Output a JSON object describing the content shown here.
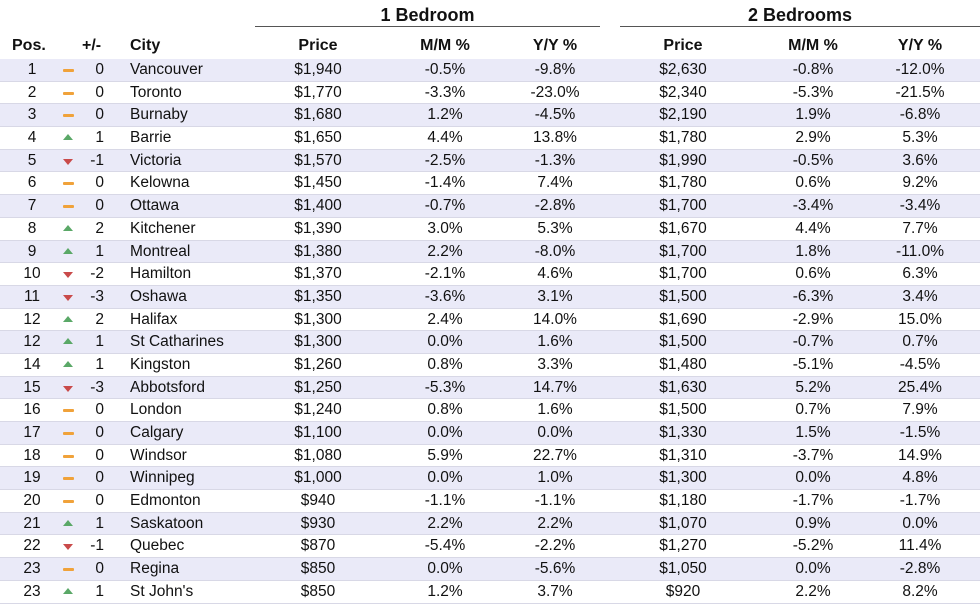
{
  "groups": {
    "one_bed": "1 Bedroom",
    "two_bed": "2 Bedrooms"
  },
  "headers": {
    "pos": "Pos.",
    "change": "+/-",
    "city": "City",
    "price1": "Price",
    "mm1": "M/M %",
    "yy1": "Y/Y %",
    "price2": "Price",
    "mm2": "M/M %",
    "yy2": "Y/Y %"
  },
  "colors": {
    "up": "#5aa867",
    "down": "#c94a4a",
    "same": "#f0a23a",
    "stripe": "#eaeaf8"
  },
  "rows": [
    {
      "pos": "1",
      "trend": "same",
      "change": "0",
      "city": "Vancouver",
      "price1": "$1,940",
      "mm1": "-0.5%",
      "yy1": "-9.8%",
      "price2": "$2,630",
      "mm2": "-0.8%",
      "yy2": "-12.0%"
    },
    {
      "pos": "2",
      "trend": "same",
      "change": "0",
      "city": "Toronto",
      "price1": "$1,770",
      "mm1": "-3.3%",
      "yy1": "-23.0%",
      "price2": "$2,340",
      "mm2": "-5.3%",
      "yy2": "-21.5%"
    },
    {
      "pos": "3",
      "trend": "same",
      "change": "0",
      "city": "Burnaby",
      "price1": "$1,680",
      "mm1": "1.2%",
      "yy1": "-4.5%",
      "price2": "$2,190",
      "mm2": "1.9%",
      "yy2": "-6.8%"
    },
    {
      "pos": "4",
      "trend": "up",
      "change": "1",
      "city": "Barrie",
      "price1": "$1,650",
      "mm1": "4.4%",
      "yy1": "13.8%",
      "price2": "$1,780",
      "mm2": "2.9%",
      "yy2": "5.3%"
    },
    {
      "pos": "5",
      "trend": "down",
      "change": "-1",
      "city": "Victoria",
      "price1": "$1,570",
      "mm1": "-2.5%",
      "yy1": "-1.3%",
      "price2": "$1,990",
      "mm2": "-0.5%",
      "yy2": "3.6%"
    },
    {
      "pos": "6",
      "trend": "same",
      "change": "0",
      "city": "Kelowna",
      "price1": "$1,450",
      "mm1": "-1.4%",
      "yy1": "7.4%",
      "price2": "$1,780",
      "mm2": "0.6%",
      "yy2": "9.2%"
    },
    {
      "pos": "7",
      "trend": "same",
      "change": "0",
      "city": "Ottawa",
      "price1": "$1,400",
      "mm1": "-0.7%",
      "yy1": "-2.8%",
      "price2": "$1,700",
      "mm2": "-3.4%",
      "yy2": "-3.4%"
    },
    {
      "pos": "8",
      "trend": "up",
      "change": "2",
      "city": "Kitchener",
      "price1": "$1,390",
      "mm1": "3.0%",
      "yy1": "5.3%",
      "price2": "$1,670",
      "mm2": "4.4%",
      "yy2": "7.7%"
    },
    {
      "pos": "9",
      "trend": "up",
      "change": "1",
      "city": "Montreal",
      "price1": "$1,380",
      "mm1": "2.2%",
      "yy1": "-8.0%",
      "price2": "$1,700",
      "mm2": "1.8%",
      "yy2": "-11.0%"
    },
    {
      "pos": "10",
      "trend": "down",
      "change": "-2",
      "city": "Hamilton",
      "price1": "$1,370",
      "mm1": "-2.1%",
      "yy1": "4.6%",
      "price2": "$1,700",
      "mm2": "0.6%",
      "yy2": "6.3%"
    },
    {
      "pos": "11",
      "trend": "down",
      "change": "-3",
      "city": "Oshawa",
      "price1": "$1,350",
      "mm1": "-3.6%",
      "yy1": "3.1%",
      "price2": "$1,500",
      "mm2": "-6.3%",
      "yy2": "3.4%"
    },
    {
      "pos": "12",
      "trend": "up",
      "change": "2",
      "city": "Halifax",
      "price1": "$1,300",
      "mm1": "2.4%",
      "yy1": "14.0%",
      "price2": "$1,690",
      "mm2": "-2.9%",
      "yy2": "15.0%"
    },
    {
      "pos": "12",
      "trend": "up",
      "change": "1",
      "city": "St Catharines",
      "price1": "$1,300",
      "mm1": "0.0%",
      "yy1": "1.6%",
      "price2": "$1,500",
      "mm2": "-0.7%",
      "yy2": "0.7%"
    },
    {
      "pos": "14",
      "trend": "up",
      "change": "1",
      "city": "Kingston",
      "price1": "$1,260",
      "mm1": "0.8%",
      "yy1": "3.3%",
      "price2": "$1,480",
      "mm2": "-5.1%",
      "yy2": "-4.5%"
    },
    {
      "pos": "15",
      "trend": "down",
      "change": "-3",
      "city": "Abbotsford",
      "price1": "$1,250",
      "mm1": "-5.3%",
      "yy1": "14.7%",
      "price2": "$1,630",
      "mm2": "5.2%",
      "yy2": "25.4%"
    },
    {
      "pos": "16",
      "trend": "same",
      "change": "0",
      "city": "London",
      "price1": "$1,240",
      "mm1": "0.8%",
      "yy1": "1.6%",
      "price2": "$1,500",
      "mm2": "0.7%",
      "yy2": "7.9%"
    },
    {
      "pos": "17",
      "trend": "same",
      "change": "0",
      "city": "Calgary",
      "price1": "$1,100",
      "mm1": "0.0%",
      "yy1": "0.0%",
      "price2": "$1,330",
      "mm2": "1.5%",
      "yy2": "-1.5%"
    },
    {
      "pos": "18",
      "trend": "same",
      "change": "0",
      "city": "Windsor",
      "price1": "$1,080",
      "mm1": "5.9%",
      "yy1": "22.7%",
      "price2": "$1,310",
      "mm2": "-3.7%",
      "yy2": "14.9%"
    },
    {
      "pos": "19",
      "trend": "same",
      "change": "0",
      "city": "Winnipeg",
      "price1": "$1,000",
      "mm1": "0.0%",
      "yy1": "1.0%",
      "price2": "$1,300",
      "mm2": "0.0%",
      "yy2": "4.8%"
    },
    {
      "pos": "20",
      "trend": "same",
      "change": "0",
      "city": "Edmonton",
      "price1": "$940",
      "mm1": "-1.1%",
      "yy1": "-1.1%",
      "price2": "$1,180",
      "mm2": "-1.7%",
      "yy2": "-1.7%"
    },
    {
      "pos": "21",
      "trend": "up",
      "change": "1",
      "city": "Saskatoon",
      "price1": "$930",
      "mm1": "2.2%",
      "yy1": "2.2%",
      "price2": "$1,070",
      "mm2": "0.9%",
      "yy2": "0.0%"
    },
    {
      "pos": "22",
      "trend": "down",
      "change": "-1",
      "city": "Quebec",
      "price1": "$870",
      "mm1": "-5.4%",
      "yy1": "-2.2%",
      "price2": "$1,270",
      "mm2": "-5.2%",
      "yy2": "11.4%"
    },
    {
      "pos": "23",
      "trend": "same",
      "change": "0",
      "city": "Regina",
      "price1": "$850",
      "mm1": "0.0%",
      "yy1": "-5.6%",
      "price2": "$1,050",
      "mm2": "0.0%",
      "yy2": "-2.8%"
    },
    {
      "pos": "23",
      "trend": "up",
      "change": "1",
      "city": "St John's",
      "price1": "$850",
      "mm1": "1.2%",
      "yy1": "3.7%",
      "price2": "$920",
      "mm2": "2.2%",
      "yy2": "8.2%"
    }
  ]
}
